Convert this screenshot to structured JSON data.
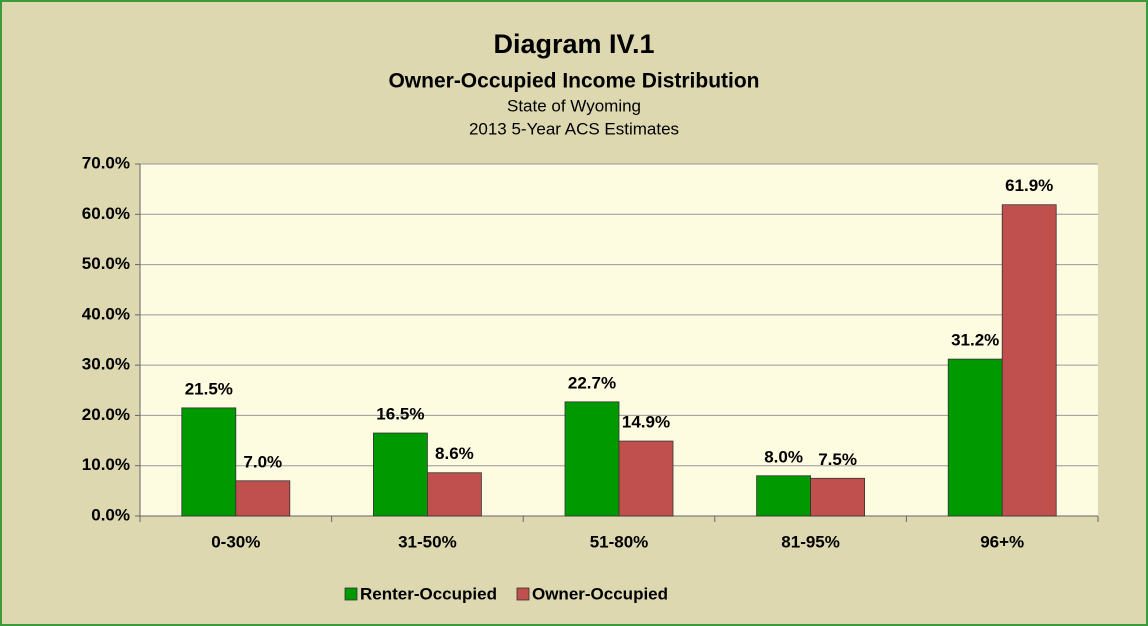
{
  "chart_data": {
    "type": "bar",
    "title": "Diagram IV.1",
    "subtitles": [
      "Owner-Occupied Income Distribution",
      "State of Wyoming",
      "2013 5-Year ACS Estimates"
    ],
    "categories": [
      "0-30%",
      "31-50%",
      "51-80%",
      "81-95%",
      "96+%"
    ],
    "series": [
      {
        "name": "Renter-Occupied",
        "color": "#009900",
        "values": [
          21.5,
          16.5,
          22.7,
          8.0,
          31.2
        ],
        "value_labels": [
          "21.5%",
          "16.5%",
          "22.7%",
          "8.0%",
          "31.2%"
        ]
      },
      {
        "name": "Owner-Occupied",
        "color": "#c0504d",
        "values": [
          7.0,
          8.6,
          14.9,
          7.5,
          61.9
        ],
        "value_labels": [
          "7.0%",
          "8.6%",
          "14.9%",
          "7.5%",
          "61.9%"
        ]
      }
    ],
    "ylim": [
      0,
      70
    ],
    "yticks": [
      {
        "value": 0,
        "label": "0.0%"
      },
      {
        "value": 10,
        "label": "10.0%"
      },
      {
        "value": 20,
        "label": "20.0%"
      },
      {
        "value": 30,
        "label": "30.0%"
      },
      {
        "value": 40,
        "label": "40.0%"
      },
      {
        "value": 50,
        "label": "50.0%"
      },
      {
        "value": 60,
        "label": "60.0%"
      },
      {
        "value": 70,
        "label": "70.0%"
      }
    ],
    "grid": true,
    "legend": "bottom"
  }
}
